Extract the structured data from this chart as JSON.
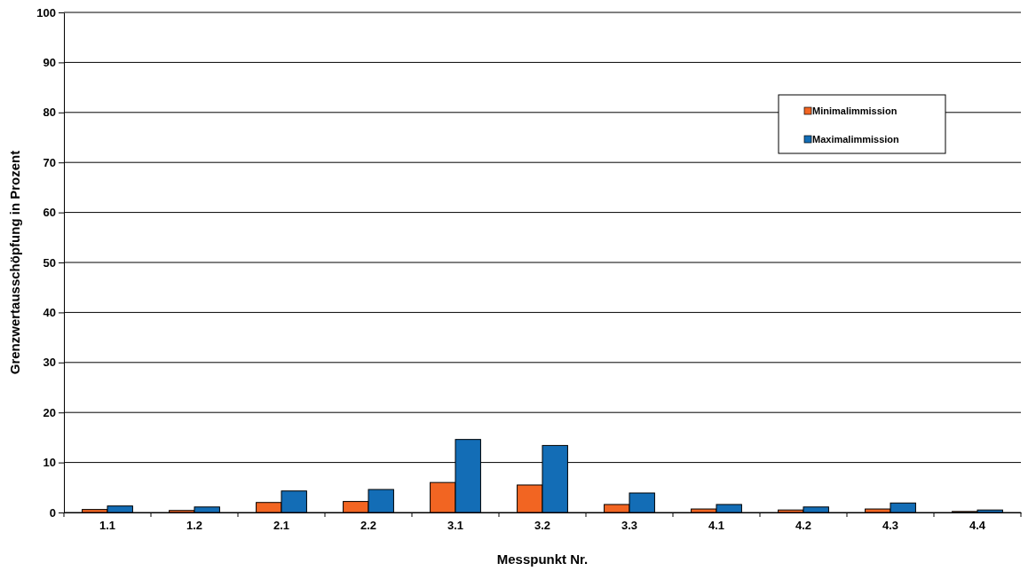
{
  "chart_data": {
    "type": "bar",
    "xlabel": "Messpunkt Nr.",
    "ylabel": "Grenzwertausschöpfung  in Prozent",
    "categories": [
      "1.1",
      "1.2",
      "2.1",
      "2.2",
      "3.1",
      "3.2",
      "3.3",
      "4.1",
      "4.2",
      "4.3",
      "4.4"
    ],
    "series": [
      {
        "name": "Minimalimmission",
        "color": "#f26522",
        "values": [
          0.6,
          0.4,
          2.0,
          2.2,
          6.0,
          5.5,
          1.6,
          0.7,
          0.5,
          0.7,
          0.2
        ]
      },
      {
        "name": "Maximalimmission",
        "color": "#136db6",
        "values": [
          1.3,
          1.1,
          4.3,
          4.6,
          14.6,
          13.4,
          3.9,
          1.6,
          1.1,
          1.9,
          0.5
        ]
      }
    ],
    "ylim": [
      0,
      100
    ],
    "yticks": [
      0,
      10,
      20,
      30,
      40,
      50,
      60,
      70,
      80,
      90,
      100
    ],
    "grid": "y",
    "legend": "top right"
  }
}
